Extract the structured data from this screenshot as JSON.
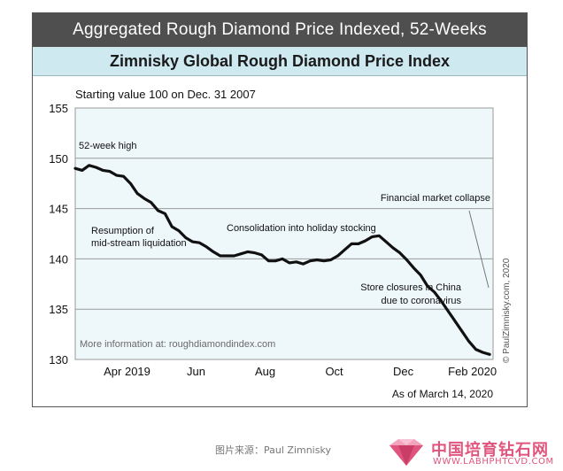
{
  "header": {
    "title": "Aggregated Rough Diamond Price Indexed, 52-Weeks",
    "subtitle": "Zimnisky Global Rough Diamond Price Index"
  },
  "chart_data": {
    "type": "line",
    "note_top": "Starting value 100 on Dec. 31 2007",
    "ylim": [
      130,
      155
    ],
    "yticks": [
      "130",
      "135",
      "140",
      "145",
      "150",
      "155"
    ],
    "xticks": [
      {
        "label": "Apr 2019",
        "x": 4.5
      },
      {
        "label": "Jun",
        "x": 6.5
      },
      {
        "label": "Aug",
        "x": 8.5
      },
      {
        "label": "Oct",
        "x": 10.5
      },
      {
        "label": "Dec",
        "x": 12.5
      },
      {
        "label": "Feb 2020",
        "x": 14.5
      }
    ],
    "xlim": [
      3,
      15.1
    ],
    "grid": true,
    "series": [
      {
        "color": "#111111",
        "x": [
          3.0,
          3.2,
          3.4,
          3.6,
          3.8,
          4.0,
          4.2,
          4.4,
          4.6,
          4.8,
          5.0,
          5.2,
          5.4,
          5.6,
          5.8,
          6.0,
          6.2,
          6.4,
          6.6,
          6.8,
          7.0,
          7.2,
          7.4,
          7.6,
          7.8,
          8.0,
          8.2,
          8.4,
          8.6,
          8.8,
          9.0,
          9.2,
          9.4,
          9.6,
          9.8,
          10.0,
          10.2,
          10.4,
          10.6,
          10.8,
          11.0,
          11.2,
          11.4,
          11.6,
          11.8,
          12.0,
          12.2,
          12.4,
          12.6,
          12.8,
          13.0,
          13.2,
          13.4,
          13.6,
          13.8,
          14.0,
          14.2,
          14.4,
          14.6,
          14.8,
          15.0
        ],
        "values": [
          149.0,
          148.8,
          149.3,
          149.1,
          148.8,
          148.7,
          148.3,
          148.2,
          147.5,
          146.5,
          146.0,
          145.6,
          144.8,
          144.5,
          143.2,
          142.8,
          142.1,
          141.7,
          141.6,
          141.2,
          140.7,
          140.3,
          140.3,
          140.3,
          140.5,
          140.7,
          140.6,
          140.4,
          139.8,
          139.8,
          140.0,
          139.6,
          139.7,
          139.5,
          139.8,
          139.9,
          139.8,
          139.9,
          140.3,
          140.9,
          141.5,
          141.5,
          141.8,
          142.2,
          142.3,
          141.7,
          141.1,
          140.6,
          139.9,
          139.1,
          138.4,
          137.3,
          136.7,
          135.8,
          134.8,
          133.8,
          132.8,
          131.8,
          131.0,
          130.7,
          130.5
        ]
      }
    ],
    "annotations": {
      "high": "52-week high",
      "resumption_1": "Resumption of",
      "resumption_2": "mid-stream liquidation",
      "consolidation": "Consolidation into holiday stocking",
      "collapse": "Financial market collapse",
      "closures_1": "Store closures in China",
      "closures_2": "due to coronavirus",
      "more_info": "More information at: roughdiamondindex.com",
      "copyright": "© PaulZimnisky.com, 2020"
    },
    "as_of": "As of March 14, 2020"
  },
  "footer": {
    "caption": "图片来源：Paul Zimnisky",
    "watermark_cn": "中国培育钻石网",
    "watermark_url": "WWW.LABHPHTCVD.COM",
    "watermark_color": "#e0557d"
  }
}
